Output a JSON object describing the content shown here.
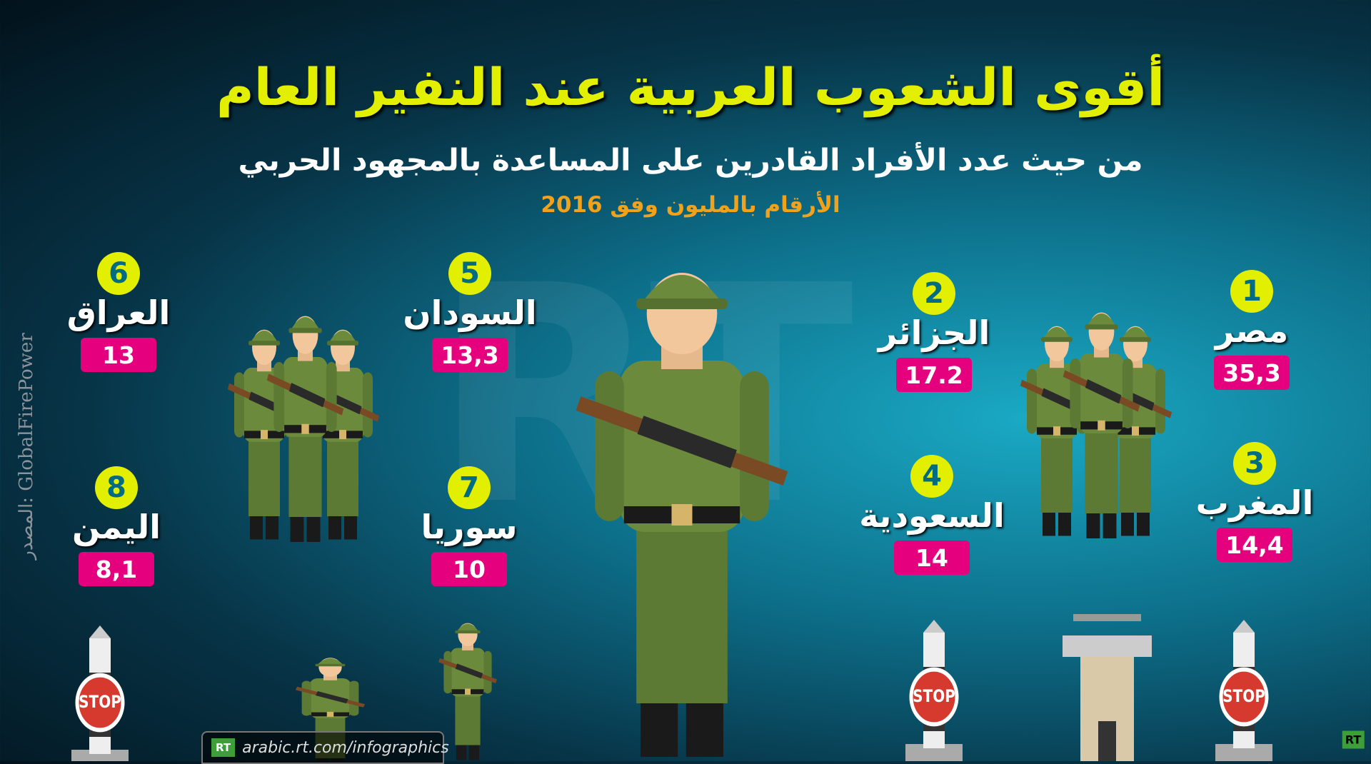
{
  "header": {
    "title": "أقوى الشعوب العربية عند النفير العام",
    "subtitle": "من حيث عدد الأفراد القادرين على المساعدة بالمجهود الحربي",
    "note": "الأرقام بالمليون وفق 2016"
  },
  "countries": [
    {
      "rank": "1",
      "name": "مصر",
      "value": "35,3"
    },
    {
      "rank": "2",
      "name": "الجزائر",
      "value": "17.2"
    },
    {
      "rank": "3",
      "name": "المغرب",
      "value": "14,4"
    },
    {
      "rank": "4",
      "name": "السعودية",
      "value": "14"
    },
    {
      "rank": "5",
      "name": "السودان",
      "value": "13,3"
    },
    {
      "rank": "6",
      "name": "العراق",
      "value": "13"
    },
    {
      "rank": "7",
      "name": "سوريا",
      "value": "10"
    },
    {
      "rank": "8",
      "name": "اليمن",
      "value": "8,1"
    }
  ],
  "source": "المصدر: GlobalFirePower",
  "footer": {
    "logo": "RT",
    "url": "arabic.rt.com/infographics"
  },
  "corner_logo": "RT",
  "stop_sign": "STOP"
}
